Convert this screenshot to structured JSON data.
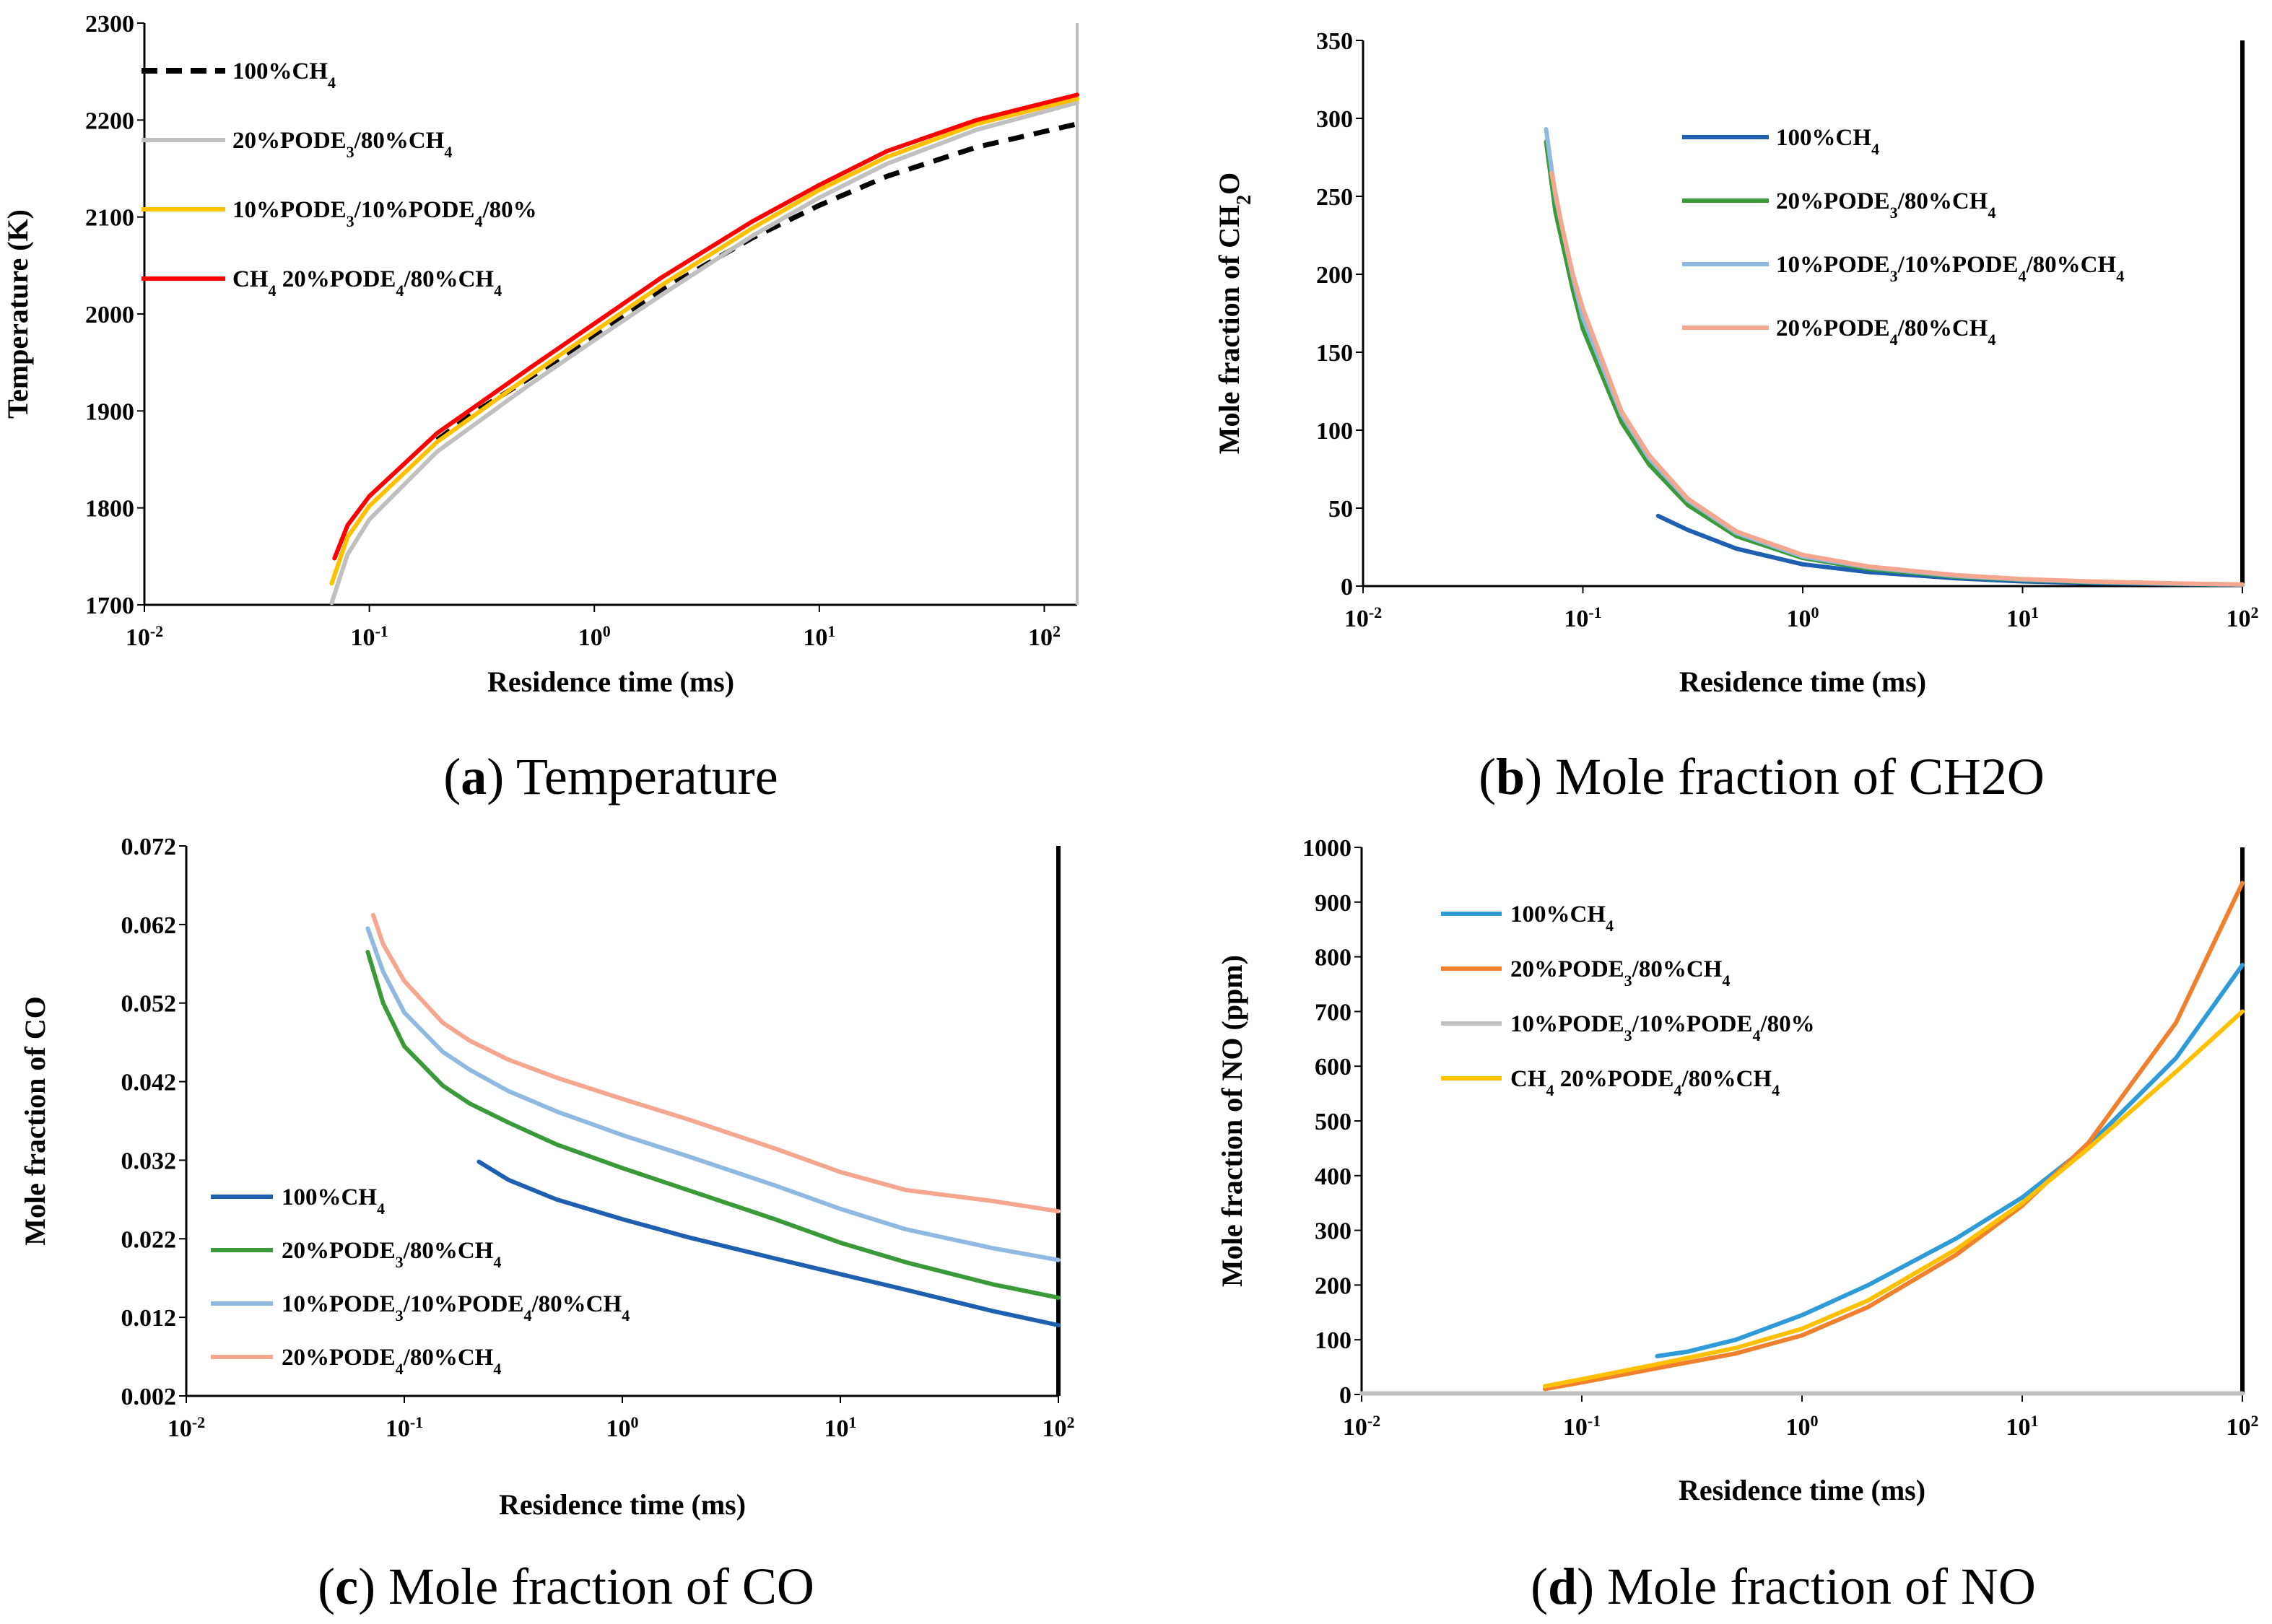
{
  "chart_data": [
    {
      "type": "line",
      "id": "a",
      "xscale": "log",
      "xlim": [
        0.01,
        140
      ],
      "ylim": [
        1700,
        2300
      ],
      "yticks": [
        "1700",
        "1800",
        "1900",
        "2000",
        "2100",
        "2200",
        "2300"
      ],
      "xticks": [
        {
          "base": "10",
          "exp": "-2"
        },
        {
          "base": "10",
          "exp": "-1"
        },
        {
          "base": "10",
          "exp": "0"
        },
        {
          "base": "10",
          "exp": "1"
        },
        {
          "base": "10",
          "exp": "2"
        }
      ],
      "ylabel": "Temperature (K)",
      "xlabel": "Residence time (ms)",
      "caption": {
        "letter": "a",
        "text": " Temperature"
      },
      "legend": [
        {
          "text": "100%CH₄",
          "color": "#000000",
          "dashed": true
        },
        {
          "text": "20%PODE₃/80%CH₄",
          "color": "#c0c0c0"
        },
        {
          "text": "10%PODE₃/10%PODE₄/80%",
          "color": "#ffc000"
        },
        {
          "text": "CH₄ 20%PODE₄/80%CH₄",
          "color": "#ff0000"
        }
      ],
      "series": [
        {
          "name": "100%CH4",
          "color": "#000000",
          "dashed": true,
          "x": [
            0.2,
            0.3,
            0.5,
            1,
            2,
            5,
            10,
            20,
            50,
            140
          ],
          "y": [
            1870,
            1900,
            1932,
            1978,
            2025,
            2078,
            2112,
            2142,
            2172,
            2196
          ]
        },
        {
          "name": "20%PODE3/80%CH4",
          "color": "#c0c0c0",
          "x": [
            0.068,
            0.08,
            0.1,
            0.2,
            0.5,
            1,
            2,
            5,
            10,
            20,
            50,
            140
          ],
          "y": [
            1702,
            1752,
            1788,
            1858,
            1925,
            1973,
            2020,
            2080,
            2120,
            2155,
            2190,
            2218
          ]
        },
        {
          "name": "10%PODE3/10%PODE4/80%CH4",
          "color": "#ffc000",
          "x": [
            0.068,
            0.08,
            0.1,
            0.2,
            0.5,
            1,
            2,
            5,
            10,
            20,
            50,
            140
          ],
          "y": [
            1722,
            1770,
            1802,
            1868,
            1934,
            1982,
            2030,
            2088,
            2128,
            2162,
            2196,
            2222
          ]
        },
        {
          "name": "20%PODE4/80%CH4",
          "color": "#ff0000",
          "x": [
            0.07,
            0.08,
            0.1,
            0.2,
            0.5,
            1,
            2,
            5,
            10,
            20,
            50,
            140
          ],
          "y": [
            1748,
            1782,
            1812,
            1877,
            1942,
            1990,
            2038,
            2095,
            2133,
            2168,
            2200,
            2226
          ]
        }
      ]
    },
    {
      "type": "line",
      "id": "b",
      "xscale": "log",
      "xlim": [
        0.01,
        100
      ],
      "ylim": [
        0,
        350
      ],
      "yticks": [
        "0",
        "50",
        "100",
        "150",
        "200",
        "250",
        "300",
        "350"
      ],
      "xticks": [
        {
          "base": "10",
          "exp": "-2"
        },
        {
          "base": "10",
          "exp": "-1"
        },
        {
          "base": "10",
          "exp": "0"
        },
        {
          "base": "10",
          "exp": "1"
        },
        {
          "base": "10",
          "exp": "2"
        }
      ],
      "ylabel": "Mole fraction  of CH₂O",
      "xlabel": "Residence time (ms)",
      "caption": {
        "letter": "b",
        "text": " Mole fraction of CH2O"
      },
      "legend": [
        {
          "text": "100%CH₄",
          "color": "#1f5fb0"
        },
        {
          "text": "20%PODE₃/80%CH₄",
          "color": "#3a9a3a"
        },
        {
          "text": "10%PODE₃/10%PODE₄/80%CH₄",
          "color": "#8fb9e0"
        },
        {
          "text": "20%PODE₄/80%CH₄",
          "color": "#f4a68e"
        }
      ],
      "series": [
        {
          "name": "100%CH4",
          "color": "#1f5fb0",
          "x": [
            0.22,
            0.3,
            0.5,
            1,
            2,
            5,
            10,
            20,
            50,
            100
          ],
          "y": [
            45,
            36,
            24,
            14,
            9,
            5,
            3,
            2,
            1.2,
            0.8
          ]
        },
        {
          "name": "20%PODE3/80%CH4",
          "color": "#3a9a3a",
          "x": [
            0.068,
            0.075,
            0.09,
            0.1,
            0.15,
            0.2,
            0.3,
            0.5,
            1,
            2,
            5,
            10,
            20,
            50,
            100
          ],
          "y": [
            285,
            240,
            190,
            165,
            105,
            78,
            52,
            32,
            18,
            11,
            6,
            4,
            2.5,
            1.5,
            1
          ]
        },
        {
          "name": "10%PODE3/10%PODE4/80%CH4",
          "color": "#8fb9e0",
          "x": [
            0.068,
            0.075,
            0.09,
            0.1,
            0.15,
            0.2,
            0.3,
            0.5,
            1,
            2,
            5,
            10,
            20,
            50,
            100
          ],
          "y": [
            293,
            250,
            198,
            172,
            110,
            82,
            55,
            34,
            19,
            12,
            6.5,
            4.2,
            2.8,
            1.6,
            1
          ]
        },
        {
          "name": "20%PODE4/80%CH4",
          "color": "#f4a68e",
          "x": [
            0.072,
            0.08,
            0.09,
            0.1,
            0.15,
            0.2,
            0.3,
            0.5,
            1,
            2,
            5,
            10,
            20,
            50,
            100
          ],
          "y": [
            265,
            232,
            200,
            178,
            112,
            84,
            56,
            35,
            20,
            12.5,
            7,
            4.5,
            3,
            1.7,
            1
          ]
        }
      ]
    },
    {
      "type": "line",
      "id": "c",
      "xscale": "log",
      "xlim": [
        0.01,
        100
      ],
      "ylim": [
        0.002,
        0.072
      ],
      "yticks": [
        "0.002",
        "0.012",
        "0.022",
        "0.032",
        "0.042",
        "0.052",
        "0.062",
        "0.072"
      ],
      "xticks": [
        {
          "base": "10",
          "exp": "-2"
        },
        {
          "base": "10",
          "exp": "-1"
        },
        {
          "base": "10",
          "exp": "0"
        },
        {
          "base": "10",
          "exp": "1"
        },
        {
          "base": "10",
          "exp": "2"
        }
      ],
      "ylabel": "Mole fraction  of CO",
      "xlabel": "Residence time (ms)",
      "caption": {
        "letter": "c",
        "text": " Mole fraction of CO"
      },
      "legend": [
        {
          "text": "100%CH₄",
          "color": "#1f5fb0"
        },
        {
          "text": "20%PODE₃/80%CH₄",
          "color": "#3a9a3a"
        },
        {
          "text": "10%PODE₃/10%PODE₄/80%CH₄",
          "color": "#8fb9e0"
        },
        {
          "text": "20%PODE₄/80%CH₄",
          "color": "#f4a68e"
        }
      ],
      "series": [
        {
          "name": "100%CH4",
          "color": "#1f5fb0",
          "x": [
            0.22,
            0.3,
            0.5,
            1,
            2,
            5,
            10,
            20,
            50,
            100
          ],
          "y": [
            0.0318,
            0.0295,
            0.027,
            0.0245,
            0.0222,
            0.0195,
            0.0175,
            0.0155,
            0.0128,
            0.011
          ]
        },
        {
          "name": "20%PODE3/80%CH4",
          "color": "#3a9a3a",
          "x": [
            0.068,
            0.08,
            0.1,
            0.15,
            0.2,
            0.3,
            0.5,
            1,
            2,
            5,
            10,
            20,
            50,
            100
          ],
          "y": [
            0.0585,
            0.052,
            0.0465,
            0.0415,
            0.0392,
            0.0368,
            0.034,
            0.031,
            0.0282,
            0.0245,
            0.0215,
            0.019,
            0.0162,
            0.0145
          ]
        },
        {
          "name": "10%PODE3/10%PODE4/80%CH4",
          "color": "#8fb9e0",
          "x": [
            0.068,
            0.08,
            0.1,
            0.15,
            0.2,
            0.3,
            0.5,
            1,
            2,
            5,
            10,
            20,
            50,
            100
          ],
          "y": [
            0.0615,
            0.056,
            0.0508,
            0.0458,
            0.0435,
            0.0408,
            0.0382,
            0.0352,
            0.0325,
            0.0288,
            0.0258,
            0.0232,
            0.0208,
            0.0193
          ]
        },
        {
          "name": "20%PODE4/80%CH4",
          "color": "#f4a68e",
          "x": [
            0.072,
            0.08,
            0.1,
            0.15,
            0.2,
            0.3,
            0.5,
            1,
            2,
            5,
            10,
            20,
            50,
            100
          ],
          "y": [
            0.0632,
            0.0595,
            0.0548,
            0.0495,
            0.0472,
            0.0448,
            0.0425,
            0.0398,
            0.0372,
            0.0335,
            0.0305,
            0.0282,
            0.0268,
            0.0255
          ]
        }
      ]
    },
    {
      "type": "line",
      "id": "d",
      "xscale": "log",
      "xlim": [
        0.01,
        100
      ],
      "ylim": [
        0,
        1000
      ],
      "yticks": [
        "0",
        "100",
        "200",
        "300",
        "400",
        "500",
        "600",
        "700",
        "800",
        "900",
        "1000"
      ],
      "xticks": [
        {
          "base": "10",
          "exp": "-2"
        },
        {
          "base": "10",
          "exp": "-1"
        },
        {
          "base": "10",
          "exp": "0"
        },
        {
          "base": "10",
          "exp": "1"
        },
        {
          "base": "10",
          "exp": "2"
        }
      ],
      "ylabel": "Mole fraction  of NO (ppm)",
      "xlabel": "Residence time (ms)",
      "caption": {
        "letter": "d",
        "text": " Mole fraction of NO"
      },
      "legend": [
        {
          "text": "100%CH₄",
          "color": "#2e9bd6"
        },
        {
          "text": "20%PODE₃/80%CH₄",
          "color": "#f07f2e"
        },
        {
          "text": "10%PODE₃/10%PODE₄/80%",
          "color": "#c0c0c0"
        },
        {
          "text": "CH₄ 20%PODE₄/80%CH₄",
          "color": "#ffc000"
        }
      ],
      "series": [
        {
          "name": "100%CH4",
          "color": "#2e9bd6",
          "x": [
            0.22,
            0.3,
            0.5,
            1,
            2,
            5,
            10,
            20,
            50,
            100
          ],
          "y": [
            70,
            78,
            100,
            145,
            200,
            285,
            360,
            455,
            615,
            785
          ]
        },
        {
          "name": "20%PODE3/80%CH4",
          "color": "#f07f2e",
          "x": [
            0.068,
            0.1,
            0.2,
            0.5,
            1,
            2,
            5,
            10,
            20,
            50,
            100
          ],
          "y": [
            10,
            22,
            45,
            75,
            108,
            160,
            255,
            345,
            460,
            680,
            935
          ]
        },
        {
          "name": "10%PODE3/10%PODE4/80%CH4",
          "color": "#c0c0c0",
          "x": [
            0.01,
            0.1,
            1,
            10,
            100
          ],
          "y": [
            2,
            2,
            2,
            2,
            2
          ]
        },
        {
          "name": "20%PODE4/80%CH4",
          "color": "#ffc000",
          "x": [
            0.068,
            0.1,
            0.2,
            0.5,
            1,
            2,
            5,
            10,
            20,
            50,
            100
          ],
          "y": [
            15,
            28,
            52,
            85,
            120,
            172,
            265,
            350,
            450,
            590,
            700
          ]
        }
      ]
    }
  ]
}
